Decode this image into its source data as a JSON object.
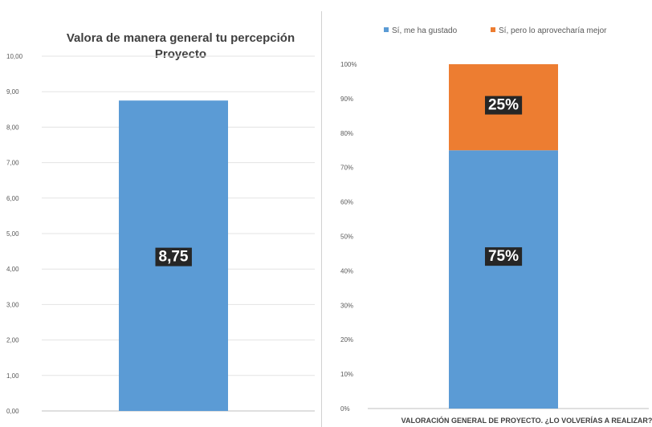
{
  "chart_data": [
    {
      "type": "bar",
      "title_lines": [
        "Valora de manera general tu percepción",
        "Proyecto"
      ],
      "categories": [
        ""
      ],
      "values": [
        8.75
      ],
      "data_labels": [
        "8,75"
      ],
      "ylim": [
        0,
        10
      ],
      "y_ticks": [
        "0,00",
        "1,00",
        "2,00",
        "3,00",
        "4,00",
        "5,00",
        "6,00",
        "7,00",
        "8,00",
        "9,00",
        "10,00"
      ],
      "grid": true,
      "colors": [
        "#5b9bd5"
      ]
    },
    {
      "type": "bar",
      "stacked": true,
      "percent": true,
      "categories": [
        ""
      ],
      "series": [
        {
          "name": "Sí, me ha gustado",
          "values": [
            75
          ],
          "label": "75%",
          "color": "#5b9bd5"
        },
        {
          "name": "Sí, pero lo aprovecharía mejor",
          "values": [
            25
          ],
          "label": "25%",
          "color": "#ed7d31"
        }
      ],
      "xlabel": "VALORACIÓN GENERAL DE PROYECTO. ¿LO VOLVERÍAS A REALIZAR?",
      "ylim": [
        0,
        100
      ],
      "y_ticks": [
        "0%",
        "10%",
        "20%",
        "30%",
        "40%",
        "50%",
        "60%",
        "70%",
        "80%",
        "90%",
        "100%"
      ],
      "legend_position": "top",
      "grid": false
    }
  ]
}
